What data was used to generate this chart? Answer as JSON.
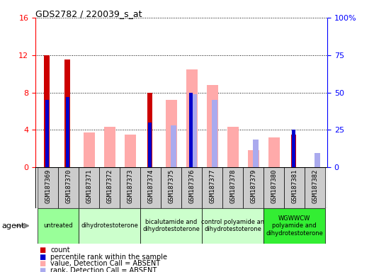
{
  "title": "GDS2782 / 220039_s_at",
  "samples": [
    "GSM187369",
    "GSM187370",
    "GSM187371",
    "GSM187372",
    "GSM187373",
    "GSM187374",
    "GSM187375",
    "GSM187376",
    "GSM187377",
    "GSM187378",
    "GSM187379",
    "GSM187380",
    "GSM187381",
    "GSM187382"
  ],
  "count": [
    12,
    11.5,
    0,
    0,
    0,
    8,
    0,
    0,
    0,
    0,
    0,
    0,
    3.5,
    0
  ],
  "percentile_rank_left": [
    7.2,
    7.5,
    0,
    0,
    0,
    4.8,
    0,
    8.0,
    0,
    0,
    0,
    0,
    4.0,
    0
  ],
  "value_absent": [
    0,
    0,
    3.7,
    4.3,
    3.5,
    0,
    7.2,
    10.5,
    8.8,
    4.3,
    1.8,
    3.2,
    0,
    0
  ],
  "rank_absent_left": [
    0,
    0,
    0,
    0,
    0,
    0,
    4.5,
    7.8,
    7.2,
    0,
    3.0,
    0,
    0,
    1.5
  ],
  "agent_groups": [
    {
      "label": "untreated",
      "start": 0,
      "end": 2,
      "color": "#99ff99"
    },
    {
      "label": "dihydrotestoterone",
      "start": 2,
      "end": 5,
      "color": "#ccffcc"
    },
    {
      "label": "bicalutamide and\ndihydrotestoterone",
      "start": 5,
      "end": 8,
      "color": "#ccffcc"
    },
    {
      "label": "control polyamide an\ndihydrotestoterone",
      "start": 8,
      "end": 11,
      "color": "#ccffcc"
    },
    {
      "label": "WGWWCW\npolyamide and\ndihydrotestoterone",
      "start": 11,
      "end": 14,
      "color": "#33ee33"
    }
  ],
  "ylim_left": [
    0,
    16
  ],
  "ylim_right": [
    0,
    100
  ],
  "yticks_left": [
    0,
    4,
    8,
    12,
    16
  ],
  "yticks_right": [
    0,
    25,
    50,
    75,
    100
  ],
  "yticklabels_right": [
    "0",
    "25",
    "50",
    "75",
    "100%"
  ],
  "count_color": "#cc0000",
  "rank_color": "#0000cc",
  "value_absent_color": "#ffaaaa",
  "rank_absent_color": "#aaaaee",
  "bg_color": "#cccccc",
  "legend_items": [
    {
      "color": "#cc0000",
      "label": "count"
    },
    {
      "color": "#0000cc",
      "label": "percentile rank within the sample"
    },
    {
      "color": "#ffaaaa",
      "label": "value, Detection Call = ABSENT"
    },
    {
      "color": "#aaaaee",
      "label": "rank, Detection Call = ABSENT"
    }
  ]
}
